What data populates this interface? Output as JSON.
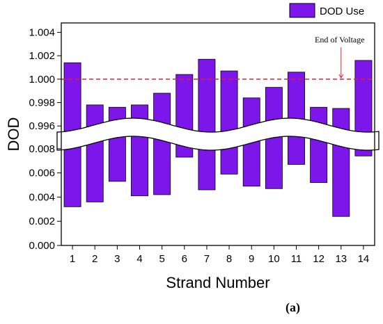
{
  "chart_data": {
    "type": "bar",
    "broken_axis": true,
    "xlabel": "Strand Number",
    "ylabel": "DOD",
    "categories": [
      "1",
      "2",
      "3",
      "4",
      "5",
      "6",
      "7",
      "8",
      "9",
      "10",
      "11",
      "12",
      "13",
      "14"
    ],
    "series": [
      {
        "name": "DOD Use",
        "upper_top": [
          1.0014,
          0.9978,
          0.9976,
          0.9978,
          0.9988,
          1.0004,
          1.0017,
          1.0007,
          0.9984,
          0.9993,
          1.0006,
          0.9976,
          0.9975,
          1.0016
        ],
        "lower_bottom": [
          0.0032,
          0.0036,
          0.0053,
          0.0041,
          0.0042,
          0.0073,
          0.0046,
          0.0059,
          0.0049,
          0.0047,
          0.0067,
          0.0052,
          0.0024,
          0.0074
        ]
      }
    ],
    "upper_ylim": [
      0.9953,
      1.0048
    ],
    "upper_yticks": [
      "0.996",
      "0.998",
      "1.000",
      "1.002",
      "1.004"
    ],
    "lower_ylim": [
      0.0,
      0.0092
    ],
    "lower_yticks": [
      "0.000",
      "0.002",
      "0.004",
      "0.006",
      "0.008"
    ],
    "reference_line": {
      "value": 1.0,
      "label": "End of Voltage",
      "color": "#e8202a"
    },
    "bar_color": "#7d16ea",
    "legend": "top-right",
    "panel_label": "(a)"
  }
}
